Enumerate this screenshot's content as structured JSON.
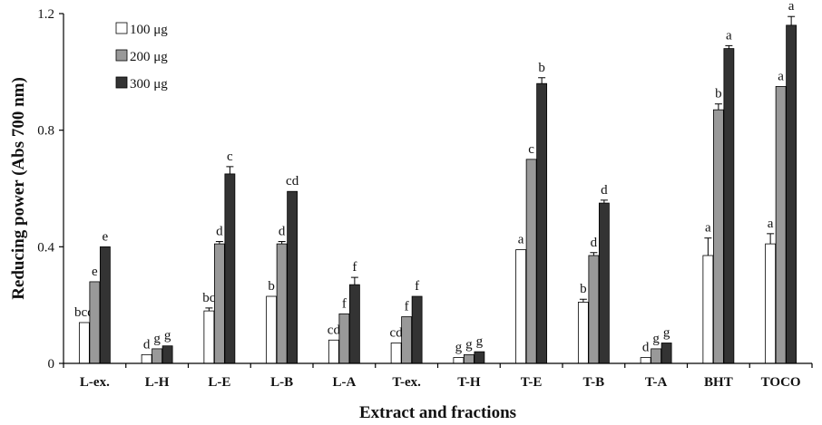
{
  "chart_data": {
    "type": "bar",
    "title": "",
    "xlabel": "Extract and fractions",
    "ylabel": "Reducing power (Abs 700 nm)",
    "ylim": [
      0,
      1.2
    ],
    "yticks": [
      "0",
      "0.4",
      "0.8",
      "1.2"
    ],
    "ytick_values": [
      0,
      0.4,
      0.8,
      1.2
    ],
    "grid": false,
    "legend_position": "top-left",
    "categories": [
      "L-ex.",
      "L-H",
      "L-E",
      "L-B",
      "L-A",
      "T-ex.",
      "T-H",
      "T-E",
      "T-B",
      "T-A",
      "BHT",
      "TOCO"
    ],
    "series": [
      {
        "name": "100 μg",
        "color": "#ffffff",
        "values": [
          0.14,
          0.03,
          0.18,
          0.23,
          0.08,
          0.07,
          0.02,
          0.39,
          0.21,
          0.02,
          0.37,
          0.41
        ],
        "errors": [
          0.0,
          0.0,
          0.01,
          0.0,
          0.0,
          0.0,
          0.0,
          0.0,
          0.01,
          0.0,
          0.06,
          0.035
        ],
        "labels": [
          "bcd",
          "d",
          "bc",
          "b",
          "cd",
          "cd",
          "g",
          "a",
          "b",
          "d",
          "a",
          "a"
        ]
      },
      {
        "name": "200 μg",
        "color": "#999999",
        "values": [
          0.28,
          0.05,
          0.41,
          0.41,
          0.17,
          0.16,
          0.03,
          0.7,
          0.37,
          0.05,
          0.87,
          0.95
        ],
        "errors": [
          0.0,
          0.0,
          0.008,
          0.008,
          0.0,
          0.0,
          0.0,
          0.0,
          0.01,
          0.0,
          0.02,
          0.0
        ],
        "labels": [
          "e",
          "g",
          "d",
          "d",
          "f",
          "f",
          "g",
          "c",
          "d",
          "g",
          "b",
          "a"
        ]
      },
      {
        "name": "300 μg",
        "color": "#333333",
        "values": [
          0.4,
          0.06,
          0.65,
          0.59,
          0.27,
          0.23,
          0.04,
          0.96,
          0.55,
          0.07,
          1.08,
          1.16
        ],
        "errors": [
          0.0,
          0.0,
          0.025,
          0.0,
          0.025,
          0.0,
          0.0,
          0.02,
          0.01,
          0.0,
          0.01,
          0.03
        ],
        "labels": [
          "e",
          "g",
          "c",
          "cd",
          "f",
          "f",
          "g",
          "b",
          "d",
          "g",
          "a",
          "a"
        ]
      }
    ]
  }
}
